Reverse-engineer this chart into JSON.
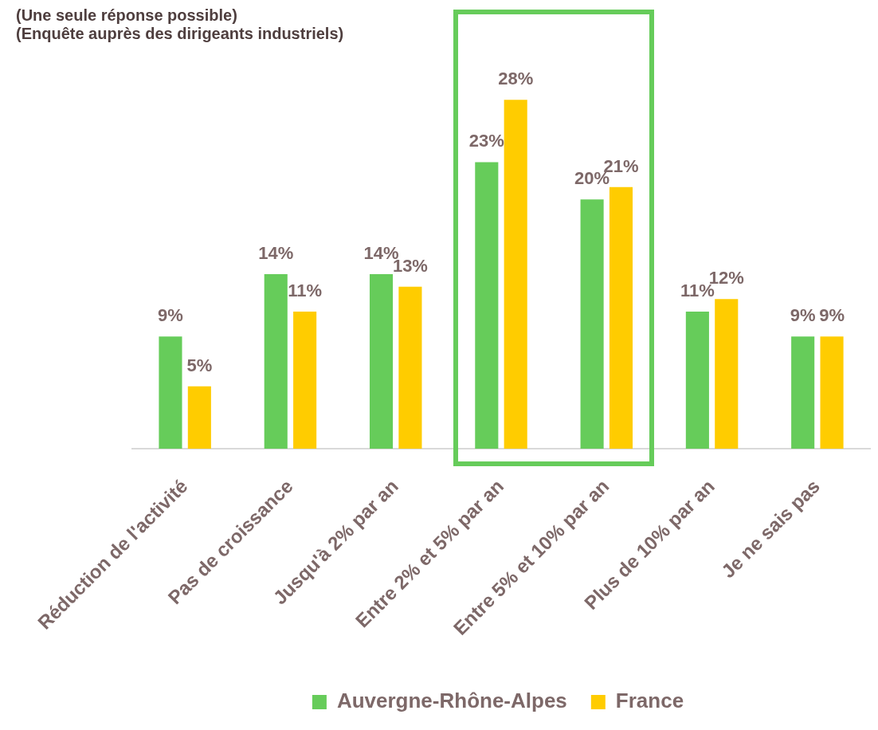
{
  "chart_data": {
    "type": "bar",
    "title": "(Une seule réponse possible)",
    "subtitle": "(Enquête auprès des dirigeants industriels)",
    "categories": [
      "Réduction de l'activité",
      "Pas de croissance",
      "Jusqu'à 2% par an",
      "Entre 2% et 5% par an",
      "Entre 5% et 10% par an",
      "Plus de 10% par an",
      "Je ne sais pas"
    ],
    "series": [
      {
        "name": "Auvergne-Rhône-Alpes",
        "color": "#66cc5a",
        "values": [
          9,
          14,
          14,
          23,
          20,
          11,
          9
        ],
        "value_labels": [
          "9%",
          "14%",
          "14%",
          "23%",
          "20%",
          "11%",
          "9%"
        ]
      },
      {
        "name": "France",
        "color": "#ffcc00",
        "values": [
          5,
          11,
          13,
          28,
          21,
          12,
          9
        ],
        "value_labels": [
          "5%",
          "11%",
          "13%",
          "28%",
          "21%",
          "12%",
          "9%"
        ]
      }
    ],
    "legend": "bottom",
    "grid": false
  }
}
